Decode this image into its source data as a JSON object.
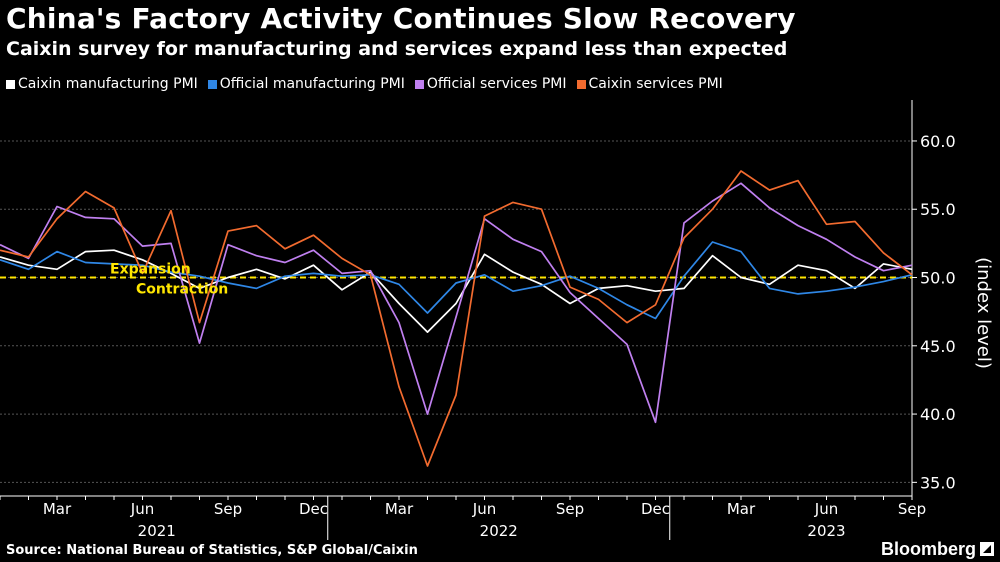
{
  "colors": {
    "background": "#000000",
    "caixin_manufacturing": "#ffffff",
    "official_manufacturing": "#2f87e6",
    "official_services": "#c080f0",
    "caixin_services": "#f26b2f",
    "threshold": "#ffe600",
    "grid": "#555555"
  },
  "brand": {
    "name": "Bloomberg",
    "mark_icon": "bloomberg-square-icon"
  },
  "chart_data": {
    "type": "line",
    "title": "China's Factory Activity Continues Slow Recovery",
    "subtitle": "Caixin survey for manufacturing and services expand less than expected",
    "ylabel": "(index level)",
    "source": "Source: National Bureau of Statistics, S&P Global/Caixin",
    "ylim": [
      34.0,
      63.0
    ],
    "yticks": [
      35.0,
      40.0,
      45.0,
      50.0,
      55.0,
      60.0
    ],
    "ytick_labels": [
      "35.0",
      "40.0",
      "45.0",
      "50.0",
      "55.0",
      "60.0"
    ],
    "x": [
      "2021-01",
      "2021-02",
      "2021-03",
      "2021-04",
      "2021-05",
      "2021-06",
      "2021-07",
      "2021-08",
      "2021-09",
      "2021-10",
      "2021-11",
      "2021-12",
      "2022-01",
      "2022-02",
      "2022-03",
      "2022-04",
      "2022-05",
      "2022-06",
      "2022-07",
      "2022-08",
      "2022-09",
      "2022-10",
      "2022-11",
      "2022-12",
      "2023-01",
      "2023-02",
      "2023-03",
      "2023-04",
      "2023-05",
      "2023-06",
      "2023-07",
      "2023-08",
      "2023-09"
    ],
    "xticks": [
      {
        "index": 2,
        "label": "Mar"
      },
      {
        "index": 5,
        "label": "Jun"
      },
      {
        "index": 8,
        "label": "Sep"
      },
      {
        "index": 11,
        "label": "Dec"
      },
      {
        "index": 14,
        "label": "Mar"
      },
      {
        "index": 17,
        "label": "Jun"
      },
      {
        "index": 20,
        "label": "Sep"
      },
      {
        "index": 23,
        "label": "Dec"
      },
      {
        "index": 26,
        "label": "Mar"
      },
      {
        "index": 29,
        "label": "Jun"
      },
      {
        "index": 32,
        "label": "Sep"
      }
    ],
    "years": [
      {
        "center": 5.5,
        "label": "2021"
      },
      {
        "center": 17.5,
        "label": "2022"
      },
      {
        "center": 29.0,
        "label": "2023"
      }
    ],
    "year_dividers": [
      11.5,
      23.5
    ],
    "threshold": {
      "value": 50.0,
      "above_label": "Expansion",
      "below_label": "Contraction"
    },
    "series": [
      {
        "name": "Caixin manufacturing PMI",
        "color_key": "caixin_manufacturing",
        "values": [
          51.5,
          50.9,
          50.6,
          51.9,
          52.0,
          51.3,
          50.3,
          49.2,
          50.0,
          50.6,
          49.9,
          50.9,
          49.1,
          50.4,
          48.1,
          46.0,
          48.1,
          51.7,
          50.4,
          49.5,
          48.1,
          49.2,
          49.4,
          49.0,
          49.2,
          51.6,
          50.0,
          49.5,
          50.9,
          50.5,
          49.2,
          51.0,
          50.6
        ]
      },
      {
        "name": "Official manufacturing PMI",
        "color_key": "official_manufacturing",
        "values": [
          51.3,
          50.6,
          51.9,
          51.1,
          51.0,
          50.9,
          50.4,
          50.1,
          49.6,
          49.2,
          50.1,
          50.3,
          50.1,
          50.2,
          49.5,
          47.4,
          49.6,
          50.2,
          49.0,
          49.4,
          50.1,
          49.2,
          48.0,
          47.0,
          50.1,
          52.6,
          51.9,
          49.2,
          48.8,
          49.0,
          49.3,
          49.7,
          50.2
        ]
      },
      {
        "name": "Official services PMI",
        "color_key": "official_services",
        "values": [
          52.4,
          51.4,
          55.2,
          54.4,
          54.3,
          52.3,
          52.5,
          45.2,
          52.4,
          51.6,
          51.1,
          52.0,
          50.3,
          50.5,
          46.7,
          40.0,
          47.1,
          54.3,
          52.8,
          51.9,
          48.9,
          47.0,
          45.1,
          39.4,
          54.0,
          55.6,
          56.9,
          55.1,
          53.8,
          52.8,
          51.5,
          50.5,
          50.9
        ]
      },
      {
        "name": "Caixin services PMI",
        "color_key": "caixin_services",
        "values": [
          52.0,
          51.5,
          54.3,
          56.3,
          55.1,
          50.3,
          54.9,
          46.7,
          53.4,
          53.8,
          52.1,
          53.1,
          51.4,
          50.2,
          42.0,
          36.2,
          41.4,
          54.5,
          55.5,
          55.0,
          49.3,
          48.4,
          46.7,
          48.0,
          52.9,
          55.0,
          57.8,
          56.4,
          57.1,
          53.9,
          54.1,
          51.8,
          50.2
        ]
      }
    ]
  }
}
